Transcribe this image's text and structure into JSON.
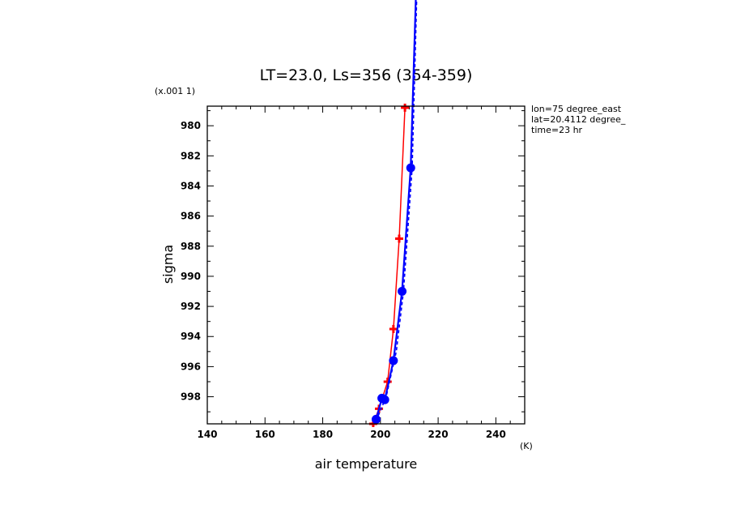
{
  "chart_data": {
    "type": "line",
    "title": "LT=23.0, Ls=356 (354-359)",
    "xlabel": "air temperature",
    "ylabel": "sigma",
    "x_units": "(K)",
    "y_scale_note": "(x.001 1)",
    "xlim": [
      140,
      250
    ],
    "ylim": [
      999.8,
      978.7
    ],
    "x_ticks": [
      140,
      160,
      180,
      200,
      220,
      240
    ],
    "y_ticks": [
      980,
      982,
      984,
      986,
      988,
      990,
      992,
      994,
      996,
      998
    ],
    "annotations": [
      "lon=75 degree_east",
      "lat=20.4112 degree_",
      "time=23 hr"
    ],
    "grid": false,
    "series": [
      {
        "color": "#ff0000",
        "marker": "plus",
        "points": [
          {
            "x": 197.5,
            "y": 999.8
          },
          {
            "x": 199.5,
            "y": 998.8
          },
          {
            "x": 202.5,
            "y": 997.0
          },
          {
            "x": 204.5,
            "y": 993.5
          },
          {
            "x": 206.5,
            "y": 987.5
          },
          {
            "x": 208.5,
            "y": 978.8
          }
        ]
      },
      {
        "color": "#0000ff",
        "marker": "circle",
        "points": [
          {
            "x": 198.5,
            "y": 999.5
          },
          {
            "x": 200.5,
            "y": 998.1
          },
          {
            "x": 201.5,
            "y": 998.2
          },
          {
            "x": 204.5,
            "y": 995.6
          },
          {
            "x": 207.5,
            "y": 991.0
          },
          {
            "x": 210.5,
            "y": 982.8
          },
          {
            "x": 212.5,
            "y": 970.0
          }
        ]
      },
      {
        "color": "#0000ff",
        "marker": "none",
        "style": "dashed",
        "points": [
          {
            "x": 198.5,
            "y": 999.6
          },
          {
            "x": 202.0,
            "y": 998.0
          },
          {
            "x": 205.5,
            "y": 995.0
          },
          {
            "x": 208.0,
            "y": 991.0
          },
          {
            "x": 211.0,
            "y": 982.8
          },
          {
            "x": 212.8,
            "y": 970.0
          }
        ]
      }
    ]
  }
}
